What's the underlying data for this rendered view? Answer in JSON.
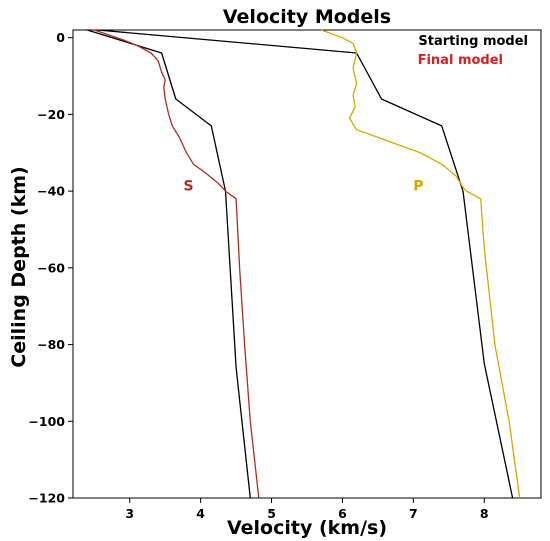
{
  "chart_data": {
    "type": "line",
    "title": "Velocity Models",
    "xlabel": "Velocity (km/s)",
    "ylabel": "Ceiling Depth (km)",
    "xlim": [
      2.2,
      8.8
    ],
    "ylim": [
      -120,
      2
    ],
    "x_ticks": [
      3,
      4,
      5,
      6,
      7,
      8
    ],
    "y_ticks": [
      0,
      -20,
      -40,
      -60,
      -80,
      -100,
      -120
    ],
    "legend": {
      "placement": "top-right",
      "entries": [
        {
          "label": "Starting model",
          "color": "#000000"
        },
        {
          "label": "Final model",
          "color": "#d42020"
        }
      ]
    },
    "annotations": [
      {
        "text": "S",
        "x": 3.83,
        "y": -38.5,
        "color": "#a83226"
      },
      {
        "text": "P",
        "x": 7.07,
        "y": -38.5,
        "color": "#d7a700"
      }
    ],
    "series": [
      {
        "name": "Starting model",
        "group": "S",
        "color": "#000000",
        "points": [
          [
            2.4,
            2
          ],
          [
            3.45,
            -4
          ],
          [
            3.65,
            -16
          ],
          [
            4.15,
            -23
          ],
          [
            4.35,
            -40
          ],
          [
            4.5,
            -86
          ],
          [
            4.7,
            -120
          ]
        ]
      },
      {
        "name": "Starting model",
        "group": "P",
        "color": "#000000",
        "points": [
          [
            2.55,
            2
          ],
          [
            6.2,
            -4
          ],
          [
            6.55,
            -16
          ],
          [
            7.4,
            -23
          ],
          [
            7.7,
            -40
          ],
          [
            8.0,
            -85
          ],
          [
            8.4,
            -120
          ]
        ]
      },
      {
        "name": "Final model",
        "group": "S",
        "color": "#a83226",
        "points": [
          [
            2.5,
            2
          ],
          [
            2.9,
            -0.5
          ],
          [
            3.1,
            -2
          ],
          [
            3.3,
            -4
          ],
          [
            3.4,
            -6
          ],
          [
            3.45,
            -9
          ],
          [
            3.5,
            -11
          ],
          [
            3.48,
            -13
          ],
          [
            3.5,
            -16
          ],
          [
            3.55,
            -20
          ],
          [
            3.6,
            -23
          ],
          [
            3.7,
            -26
          ],
          [
            3.8,
            -30
          ],
          [
            3.9,
            -33
          ],
          [
            4.05,
            -35
          ],
          [
            4.25,
            -38
          ],
          [
            4.35,
            -40
          ],
          [
            4.5,
            -42
          ],
          [
            4.55,
            -60
          ],
          [
            4.62,
            -80
          ],
          [
            4.7,
            -100
          ],
          [
            4.82,
            -120
          ]
        ]
      },
      {
        "name": "Final model",
        "group": "P",
        "color": "#d7a700",
        "points": [
          [
            5.7,
            2
          ],
          [
            6.0,
            0
          ],
          [
            6.15,
            -1.5
          ],
          [
            6.2,
            -4
          ],
          [
            6.15,
            -8
          ],
          [
            6.2,
            -12
          ],
          [
            6.15,
            -15
          ],
          [
            6.18,
            -18
          ],
          [
            6.1,
            -21
          ],
          [
            6.2,
            -24
          ],
          [
            6.5,
            -26
          ],
          [
            6.8,
            -28
          ],
          [
            7.1,
            -30
          ],
          [
            7.4,
            -33
          ],
          [
            7.6,
            -36
          ],
          [
            7.7,
            -39
          ],
          [
            7.75,
            -40
          ],
          [
            7.95,
            -42
          ],
          [
            8.0,
            -55
          ],
          [
            8.15,
            -80
          ],
          [
            8.35,
            -100
          ],
          [
            8.5,
            -120
          ]
        ]
      }
    ]
  }
}
